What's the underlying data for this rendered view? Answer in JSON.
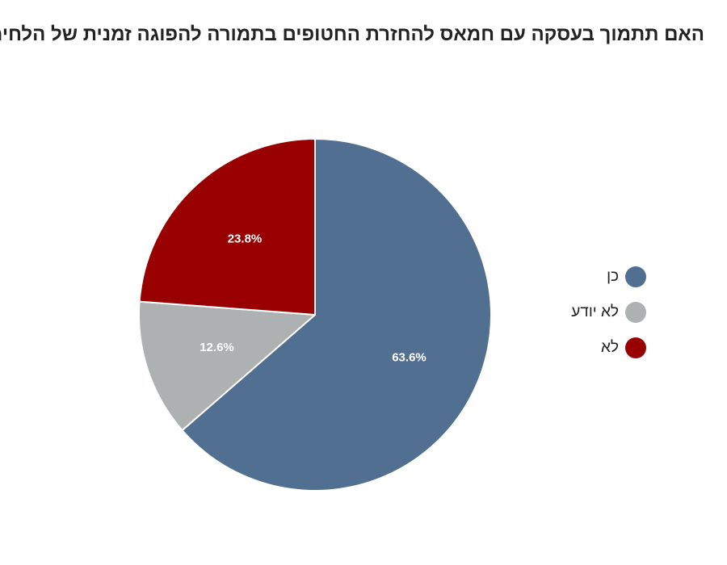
{
  "chart_data": {
    "type": "pie",
    "title": "האם תתמוך בעסקה עם חמאס להחזרת החטופים בתמורה להפוגה זמנית של הלחימה",
    "slices": [
      {
        "label": "כן",
        "value": 63.6,
        "display": "63.6%",
        "color": "#516f90"
      },
      {
        "label": "לא יודע",
        "value": 12.6,
        "display": "12.6%",
        "color": "#adb1b1"
      },
      {
        "label": "לא",
        "value": 23.8,
        "display": "23.8%",
        "color": "#990000"
      }
    ],
    "legend_position": "right"
  }
}
